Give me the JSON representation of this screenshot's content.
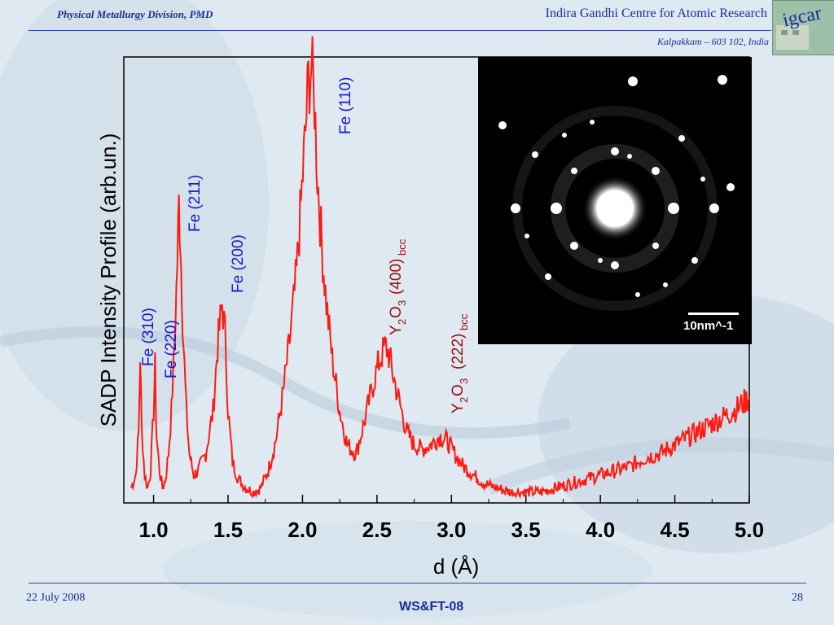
{
  "header": {
    "left": "Physical Metallurgy Division, PMD",
    "right": "Indira Gandhi Centre for Atomic Research",
    "sub": "Kalpakkam – 603 102, India",
    "logo_text": "igcar"
  },
  "footer": {
    "date": "22 July 2008",
    "center": "WS&FT-08",
    "page": "28"
  },
  "colors": {
    "trace": "#ff1a10",
    "fe_label": "#1818c8",
    "y2o3_label": "#9c0e0e",
    "text_blue": "#1a2b9a"
  },
  "inset": {
    "scale_label": "10nm^-1",
    "description_icon": "sadp-diffraction-pattern"
  },
  "chart_data": {
    "type": "line",
    "xlabel": "d (Å)",
    "ylabel": "SADP Intensity Profile (arb.un.)",
    "xlim": [
      0.8,
      5.0
    ],
    "ylim": [
      0,
      1.0
    ],
    "xticks": [
      "1.0",
      "1.5",
      "2.0",
      "2.5",
      "3.0",
      "3.5",
      "4.0",
      "4.5",
      "5.0"
    ],
    "series": [
      {
        "x": [
          0.85,
          0.88,
          0.9,
          0.91,
          0.92,
          0.94,
          0.96,
          0.98,
          1.0,
          1.01,
          1.02,
          1.04,
          1.06,
          1.08,
          1.1,
          1.12,
          1.14,
          1.16,
          1.17,
          1.18,
          1.19,
          1.2,
          1.22,
          1.24,
          1.27,
          1.3,
          1.35,
          1.4,
          1.43,
          1.46,
          1.48,
          1.5,
          1.53,
          1.57,
          1.62,
          1.67,
          1.72,
          1.77,
          1.82,
          1.87,
          1.92,
          1.96,
          1.99,
          2.02,
          2.04,
          2.06,
          2.08,
          2.1,
          2.13,
          2.16,
          2.2,
          2.25,
          2.3,
          2.36,
          2.42,
          2.48,
          2.52,
          2.56,
          2.58,
          2.61,
          2.65,
          2.7,
          2.75,
          2.8,
          2.86,
          2.92,
          2.97,
          3.02,
          3.08,
          3.15,
          3.22,
          3.3,
          3.4,
          3.5,
          3.6,
          3.7,
          3.8,
          3.9,
          4.0,
          4.1,
          4.2,
          4.3,
          4.4,
          4.5,
          4.6,
          4.7,
          4.8,
          4.9,
          5.0
        ],
        "values": [
          0.02,
          0.05,
          0.15,
          0.33,
          0.16,
          0.05,
          0.02,
          0.06,
          0.2,
          0.3,
          0.14,
          0.06,
          0.02,
          0.04,
          0.1,
          0.2,
          0.35,
          0.55,
          0.68,
          0.6,
          0.48,
          0.36,
          0.2,
          0.1,
          0.05,
          0.06,
          0.1,
          0.2,
          0.35,
          0.45,
          0.38,
          0.2,
          0.08,
          0.04,
          0.02,
          0.01,
          0.02,
          0.06,
          0.13,
          0.24,
          0.38,
          0.52,
          0.68,
          0.85,
          0.97,
          1.0,
          0.92,
          0.75,
          0.58,
          0.45,
          0.32,
          0.2,
          0.12,
          0.1,
          0.18,
          0.27,
          0.32,
          0.35,
          0.33,
          0.28,
          0.22,
          0.15,
          0.12,
          0.11,
          0.12,
          0.14,
          0.13,
          0.1,
          0.07,
          0.05,
          0.03,
          0.02,
          0.01,
          0.01,
          0.01,
          0.02,
          0.03,
          0.04,
          0.05,
          0.06,
          0.07,
          0.09,
          0.1,
          0.12,
          0.14,
          0.16,
          0.18,
          0.2,
          0.23
        ]
      }
    ],
    "annotations": [
      {
        "text": "Fe (310)",
        "color": "blue"
      },
      {
        "text": "Fe (220)",
        "color": "blue"
      },
      {
        "text": "Fe (211)",
        "color": "blue"
      },
      {
        "text": "Fe (200)",
        "color": "blue"
      },
      {
        "text": "Fe (110)",
        "color": "blue"
      },
      {
        "text": "Y2O3 (400)bcc",
        "color": "darkred",
        "parts": [
          "Y",
          "2",
          "O",
          "3",
          "(400)",
          "bcc"
        ]
      },
      {
        "text": "Y2O3  (222)bcc",
        "color": "darkred",
        "parts": [
          "Y",
          "2",
          "O",
          "3",
          "(222)",
          "bcc"
        ]
      }
    ]
  }
}
